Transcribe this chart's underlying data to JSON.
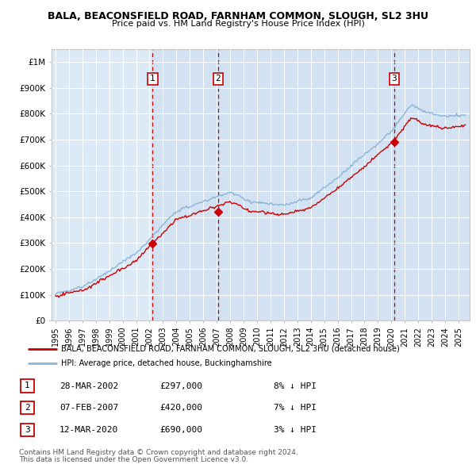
{
  "title1": "BALA, BEACONSFIELD ROAD, FARNHAM COMMON, SLOUGH, SL2 3HU",
  "title2": "Price paid vs. HM Land Registry's House Price Index (HPI)",
  "plot_bg": "#dce9f7",
  "ylim": [
    0,
    1050000
  ],
  "yticks": [
    0,
    100000,
    200000,
    300000,
    400000,
    500000,
    600000,
    700000,
    800000,
    900000,
    1000000
  ],
  "ytick_labels": [
    "£0",
    "£100K",
    "£200K",
    "£300K",
    "£400K",
    "£500K",
    "£600K",
    "£700K",
    "£800K",
    "£900K",
    "£1M"
  ],
  "xlim_start": 1994.7,
  "xlim_end": 2025.8,
  "xticks": [
    1995,
    1996,
    1997,
    1998,
    1999,
    2000,
    2001,
    2002,
    2003,
    2004,
    2005,
    2006,
    2007,
    2008,
    2009,
    2010,
    2011,
    2012,
    2013,
    2014,
    2015,
    2016,
    2017,
    2018,
    2019,
    2020,
    2021,
    2022,
    2023,
    2024,
    2025
  ],
  "hpi_color": "#8ab4d8",
  "price_color": "#cc0000",
  "vline_color": "#cc0000",
  "sale_points": [
    {
      "year": 2002.23,
      "price": 297000,
      "label": "1"
    },
    {
      "year": 2007.1,
      "price": 420000,
      "label": "2"
    },
    {
      "year": 2020.2,
      "price": 690000,
      "label": "3"
    }
  ],
  "legend_entry1": "BALA, BEACONSFIELD ROAD, FARNHAM COMMON, SLOUGH, SL2 3HU (detached house)",
  "legend_entry2": "HPI: Average price, detached house, Buckinghamshire",
  "table_rows": [
    {
      "num": "1",
      "date": "28-MAR-2002",
      "price": "£297,000",
      "hpi": "8% ↓ HPI"
    },
    {
      "num": "2",
      "date": "07-FEB-2007",
      "price": "£420,000",
      "hpi": "7% ↓ HPI"
    },
    {
      "num": "3",
      "date": "12-MAR-2020",
      "price": "£690,000",
      "hpi": "3% ↓ HPI"
    }
  ],
  "footnote1": "Contains HM Land Registry data © Crown copyright and database right 2024.",
  "footnote2": "This data is licensed under the Open Government Licence v3.0."
}
